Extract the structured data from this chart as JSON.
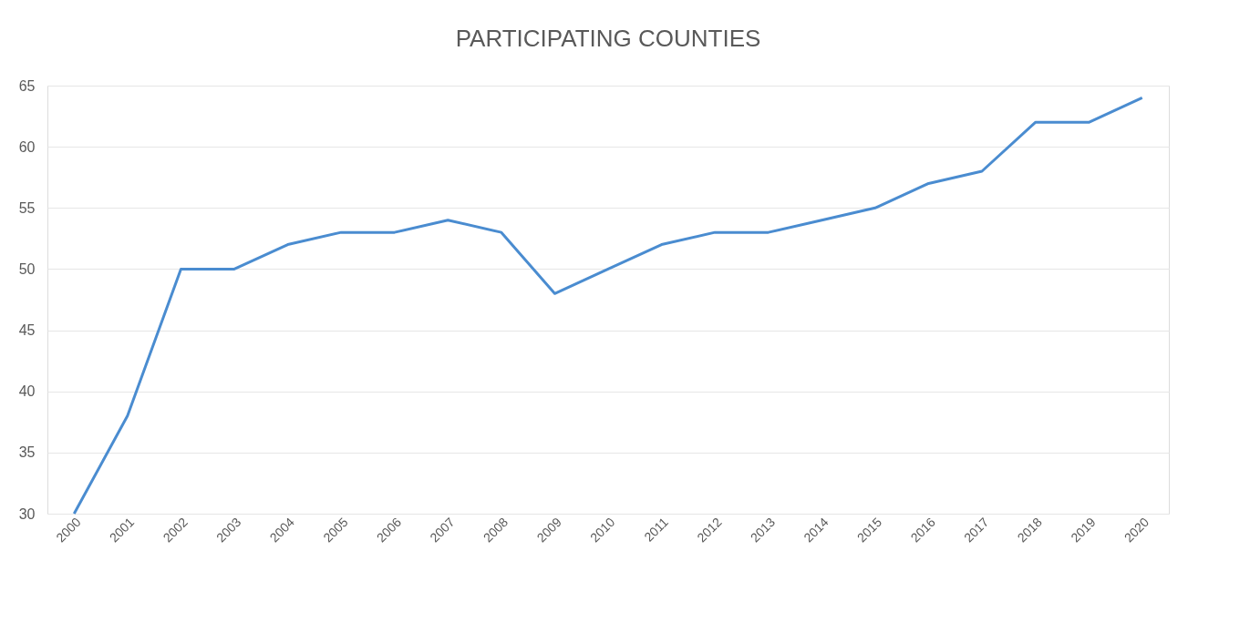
{
  "chart_data": {
    "type": "line",
    "title": "PARTICIPATING COUNTIES",
    "categories": [
      "2000",
      "2001",
      "2002",
      "2003",
      "2004",
      "2005",
      "2006",
      "2007",
      "2008",
      "2009",
      "2010",
      "2011",
      "2012",
      "2013",
      "2014",
      "2015",
      "2016",
      "2017",
      "2018",
      "2019",
      "2020"
    ],
    "series": [
      {
        "color": "#4a8cd0",
        "values": [
          30,
          38,
          50,
          50,
          52,
          53,
          53,
          54,
          53,
          48,
          50,
          52,
          53,
          53,
          54,
          55,
          57,
          58,
          62,
          62,
          64
        ]
      }
    ],
    "ylim": [
      30,
      65
    ],
    "yticks": [
      30,
      35,
      40,
      45,
      50,
      55,
      60,
      65
    ],
    "grid": "y",
    "legend": false,
    "marker": "none",
    "line_style": "solid"
  }
}
